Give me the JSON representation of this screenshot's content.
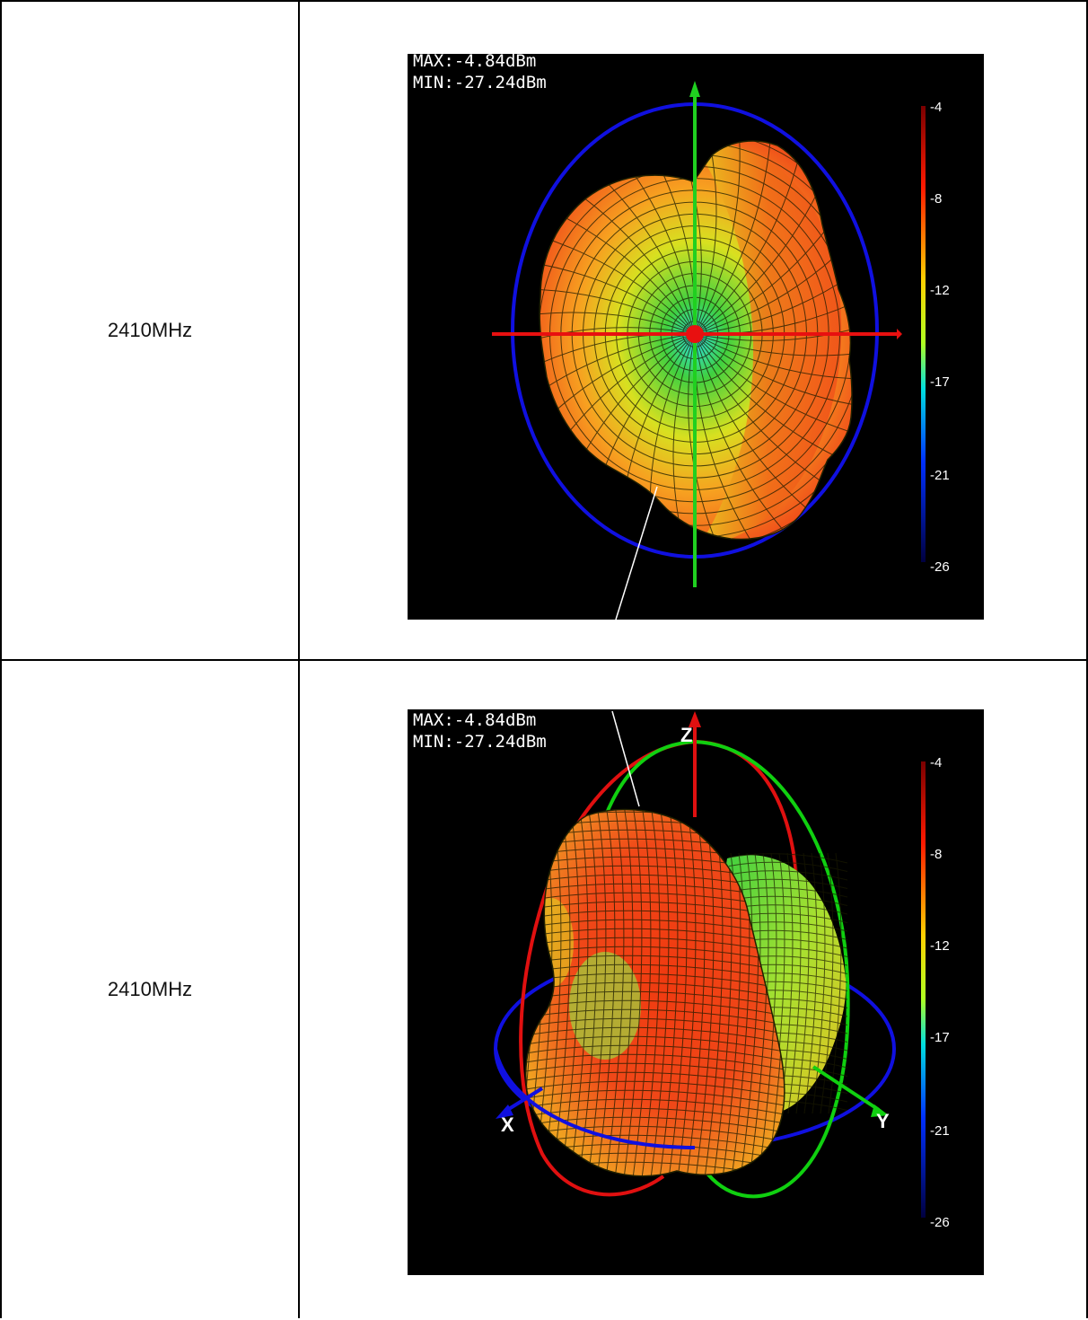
{
  "rows": [
    {
      "frequency_label": "2410MHz",
      "view": "top",
      "max_text": "MAX:-4.84dBm",
      "min_text": "MIN:-27.24dBm",
      "colorbar_ticks": [
        "-4",
        "-8",
        "-12",
        "-17",
        "-21",
        "-26"
      ]
    },
    {
      "frequency_label": "2410MHz",
      "view": "isometric",
      "max_text": "MAX:-4.84dBm",
      "min_text": "MIN:-27.24dBm",
      "colorbar_ticks": [
        "-4",
        "-8",
        "-12",
        "-17",
        "-21",
        "-26"
      ],
      "axis_labels": {
        "x": "X",
        "y": "Y",
        "z": "Z"
      }
    }
  ],
  "colors": {
    "plot_background": "#000000",
    "ring_blue": "#1010e0",
    "ring_red": "#e01010",
    "ring_green": "#10d010",
    "pattern_red": "#f03a10",
    "pattern_orange": "#f7a020",
    "pattern_yellow": "#e8e020",
    "pattern_green": "#40d040"
  }
}
